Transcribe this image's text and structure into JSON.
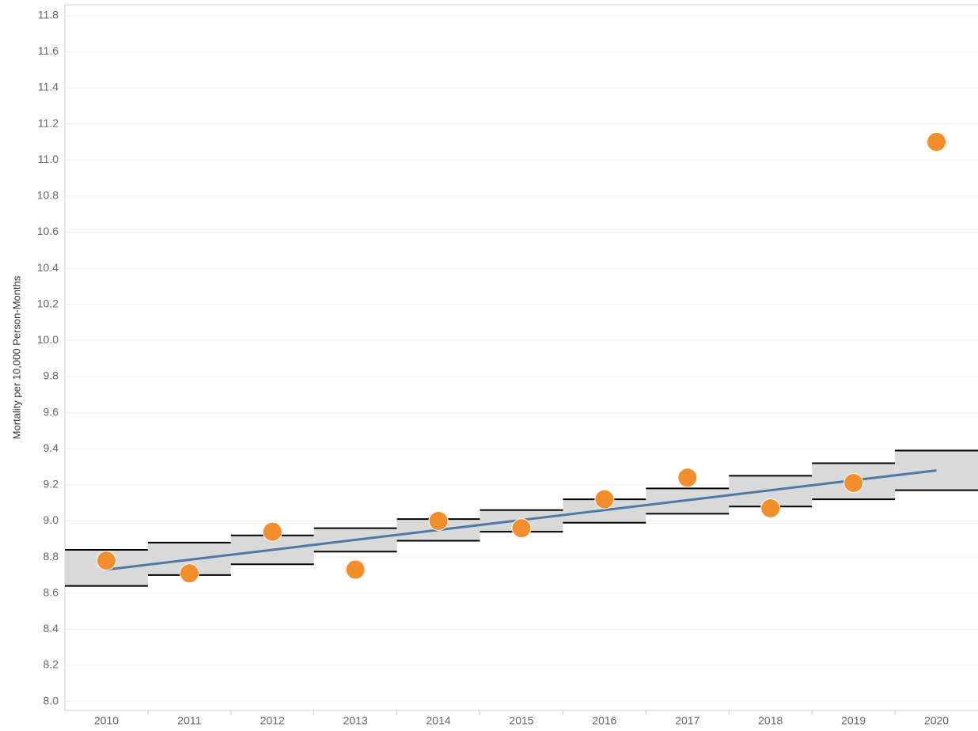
{
  "chart_data": {
    "type": "scatter",
    "y_label": "Mortality per 10,000 Person-Months",
    "categories": [
      "2010",
      "2011",
      "2012",
      "2013",
      "2014",
      "2015",
      "2016",
      "2017",
      "2018",
      "2019",
      "2020"
    ],
    "values": [
      8.78,
      8.71,
      8.94,
      8.73,
      9.0,
      8.96,
      9.12,
      9.24,
      9.07,
      9.21,
      11.1
    ],
    "color": "#f28e2b",
    "trend": [
      8.73,
      8.785,
      8.84,
      8.895,
      8.95,
      9.005,
      9.06,
      9.115,
      9.17,
      9.225,
      9.28
    ],
    "trend_color": "#4e79a7",
    "band_upper": [
      8.84,
      8.88,
      8.92,
      8.96,
      9.01,
      9.06,
      9.12,
      9.18,
      9.25,
      9.32,
      9.39
    ],
    "band_lower": [
      8.64,
      8.7,
      8.76,
      8.83,
      8.89,
      8.94,
      8.99,
      9.04,
      9.08,
      9.12,
      9.17
    ],
    "band_color": "#d9d9d9",
    "ylim": [
      7.95,
      11.86
    ],
    "yticks": [
      {
        "value": 8.0,
        "label": "8.0"
      },
      8.2,
      8.4,
      8.6,
      8.8,
      {
        "value": 9.0,
        "label": "9.0"
      },
      9.2,
      9.4,
      9.6,
      9.8,
      {
        "value": 10.0,
        "label": "10.0"
      },
      10.2,
      10.4,
      10.6,
      10.8,
      {
        "value": 11.0,
        "label": "11.0"
      },
      11.2,
      11.4,
      11.6,
      11.8
    ],
    "grid": true
  }
}
